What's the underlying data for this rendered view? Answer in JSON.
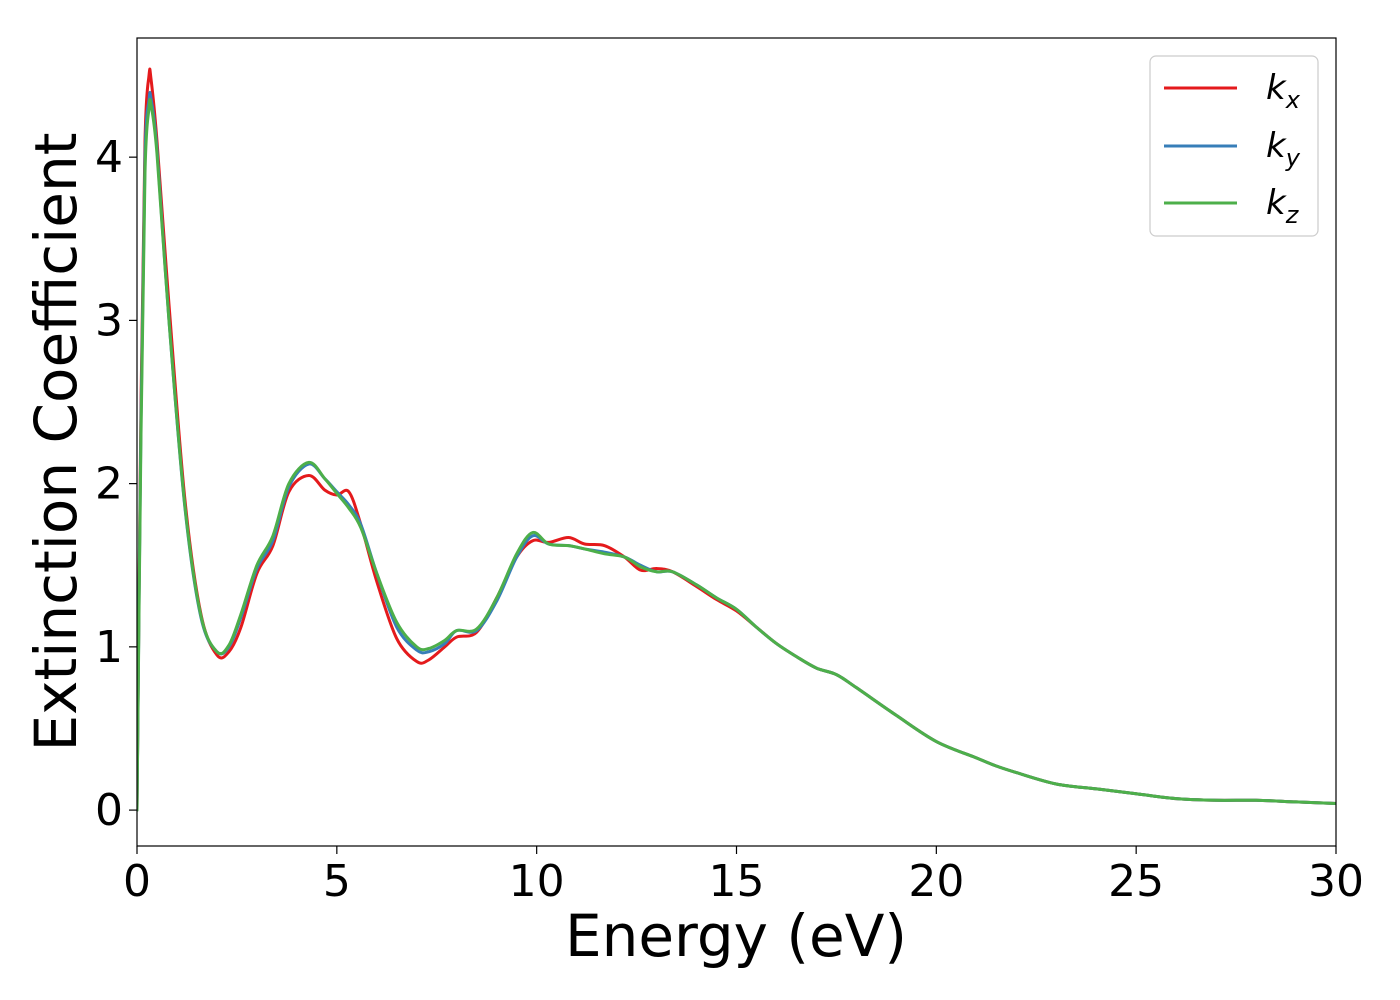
{
  "chart_data": {
    "type": "line",
    "title": "",
    "xlabel": "Energy (eV)",
    "ylabel": "Extinction Coefficient",
    "xlim": [
      0,
      30
    ],
    "ylim": [
      -0.22,
      4.73
    ],
    "xticks": [
      0,
      5,
      10,
      15,
      20,
      25,
      30
    ],
    "yticks": [
      0,
      1,
      2,
      3,
      4
    ],
    "grid": false,
    "legend_position": "top-right",
    "series": [
      {
        "name": "k_x",
        "legend_base": "k",
        "legend_sub": "x",
        "color": "#e41a1c",
        "x": [
          0,
          0.1,
          0.2,
          0.3,
          0.35,
          0.5,
          0.8,
          1.2,
          1.6,
          2.0,
          2.3,
          2.6,
          3.0,
          3.4,
          3.8,
          4.3,
          4.7,
          5.0,
          5.3,
          5.6,
          6.0,
          6.5,
          7.0,
          7.3,
          7.7,
          8.0,
          8.5,
          9.0,
          9.5,
          9.9,
          10.3,
          10.8,
          11.2,
          11.7,
          12.2,
          12.6,
          13.0,
          13.4,
          14.0,
          14.5,
          15.0,
          15.5,
          16.0,
          16.5,
          17.0,
          17.5,
          18.0,
          19.0,
          20.0,
          21.0,
          21.5,
          22.0,
          23.0,
          24.0,
          25.0,
          26.0,
          27.0,
          28.0,
          29.0,
          30.0
        ],
        "values": [
          0.0,
          2.5,
          4.1,
          4.5,
          4.48,
          4.1,
          3.1,
          1.9,
          1.2,
          0.95,
          0.97,
          1.12,
          1.45,
          1.62,
          1.95,
          2.05,
          1.96,
          1.93,
          1.95,
          1.75,
          1.4,
          1.05,
          0.91,
          0.92,
          1.0,
          1.06,
          1.09,
          1.3,
          1.55,
          1.65,
          1.64,
          1.67,
          1.63,
          1.62,
          1.55,
          1.47,
          1.48,
          1.46,
          1.37,
          1.29,
          1.22,
          1.12,
          1.02,
          0.94,
          0.87,
          0.83,
          0.75,
          0.58,
          0.42,
          0.32,
          0.27,
          0.23,
          0.16,
          0.13,
          0.1,
          0.07,
          0.06,
          0.06,
          0.05,
          0.04
        ]
      },
      {
        "name": "k_y",
        "legend_base": "k",
        "legend_sub": "y",
        "color": "#377eb8",
        "x": [
          0,
          0.1,
          0.2,
          0.3,
          0.35,
          0.5,
          0.8,
          1.2,
          1.6,
          2.0,
          2.3,
          2.6,
          3.0,
          3.4,
          3.8,
          4.3,
          4.7,
          5.0,
          5.3,
          5.6,
          6.0,
          6.5,
          7.0,
          7.3,
          7.7,
          8.0,
          8.5,
          9.0,
          9.5,
          9.9,
          10.3,
          10.8,
          11.2,
          11.7,
          12.2,
          12.6,
          13.0,
          13.4,
          14.0,
          14.5,
          15.0,
          15.5,
          16.0,
          16.5,
          17.0,
          17.5,
          18.0,
          19.0,
          20.0,
          21.0,
          21.5,
          22.0,
          23.0,
          24.0,
          25.0,
          26.0,
          27.0,
          28.0,
          29.0,
          30.0
        ],
        "values": [
          0.0,
          2.4,
          4.0,
          4.35,
          4.36,
          4.05,
          3.0,
          1.85,
          1.18,
          0.97,
          1.0,
          1.18,
          1.48,
          1.65,
          1.98,
          2.12,
          2.03,
          1.95,
          1.87,
          1.75,
          1.45,
          1.12,
          0.98,
          0.97,
          1.02,
          1.1,
          1.1,
          1.28,
          1.55,
          1.68,
          1.63,
          1.62,
          1.6,
          1.58,
          1.55,
          1.5,
          1.46,
          1.46,
          1.38,
          1.3,
          1.23,
          1.12,
          1.02,
          0.94,
          0.87,
          0.83,
          0.75,
          0.58,
          0.42,
          0.32,
          0.27,
          0.23,
          0.16,
          0.13,
          0.1,
          0.07,
          0.06,
          0.06,
          0.05,
          0.04
        ]
      },
      {
        "name": "k_z",
        "legend_base": "k",
        "legend_sub": "z",
        "color": "#4daf4a",
        "x": [
          0,
          0.1,
          0.2,
          0.3,
          0.35,
          0.5,
          0.8,
          1.2,
          1.6,
          2.0,
          2.3,
          2.6,
          3.0,
          3.4,
          3.8,
          4.3,
          4.7,
          5.0,
          5.3,
          5.6,
          6.0,
          6.5,
          7.0,
          7.3,
          7.7,
          8.0,
          8.5,
          9.0,
          9.5,
          9.9,
          10.3,
          10.8,
          11.2,
          11.7,
          12.2,
          12.6,
          13.0,
          13.4,
          14.0,
          14.5,
          15.0,
          15.5,
          16.0,
          16.5,
          17.0,
          17.5,
          18.0,
          19.0,
          20.0,
          21.0,
          21.5,
          22.0,
          23.0,
          24.0,
          25.0,
          26.0,
          27.0,
          28.0,
          29.0,
          30.0
        ],
        "values": [
          0.0,
          2.3,
          3.9,
          4.3,
          4.32,
          4.02,
          3.0,
          1.86,
          1.19,
          0.97,
          1.01,
          1.2,
          1.5,
          1.68,
          2.0,
          2.13,
          2.03,
          1.94,
          1.85,
          1.73,
          1.45,
          1.15,
          1.0,
          0.99,
          1.04,
          1.1,
          1.11,
          1.3,
          1.57,
          1.7,
          1.63,
          1.62,
          1.6,
          1.57,
          1.55,
          1.49,
          1.46,
          1.46,
          1.38,
          1.3,
          1.23,
          1.12,
          1.02,
          0.94,
          0.87,
          0.83,
          0.75,
          0.58,
          0.42,
          0.32,
          0.27,
          0.23,
          0.16,
          0.13,
          0.1,
          0.07,
          0.06,
          0.06,
          0.05,
          0.04
        ]
      }
    ]
  }
}
